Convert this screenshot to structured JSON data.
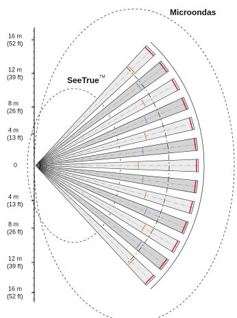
{
  "labels": {
    "microwave": "Microondas",
    "seetrue": "SeeTrue",
    "trademark": "TM"
  },
  "scale": {
    "upper": [
      {
        "m": "16 m",
        "ft": "(52 ft)"
      },
      {
        "m": "12 m",
        "ft": "(39 ft)"
      },
      {
        "m": "8 m",
        "ft": "(26 ft)"
      },
      {
        "m": "4 m",
        "ft": "(13 ft)"
      }
    ],
    "zero": "0",
    "lower": [
      {
        "m": "4 m",
        "ft": "(13 ft)"
      },
      {
        "m": "8 m",
        "ft": "(26 ft)"
      },
      {
        "m": "12 m",
        "ft": "(39 ft)"
      },
      {
        "m": "16 m",
        "ft": "(52 ft)"
      }
    ]
  }
}
